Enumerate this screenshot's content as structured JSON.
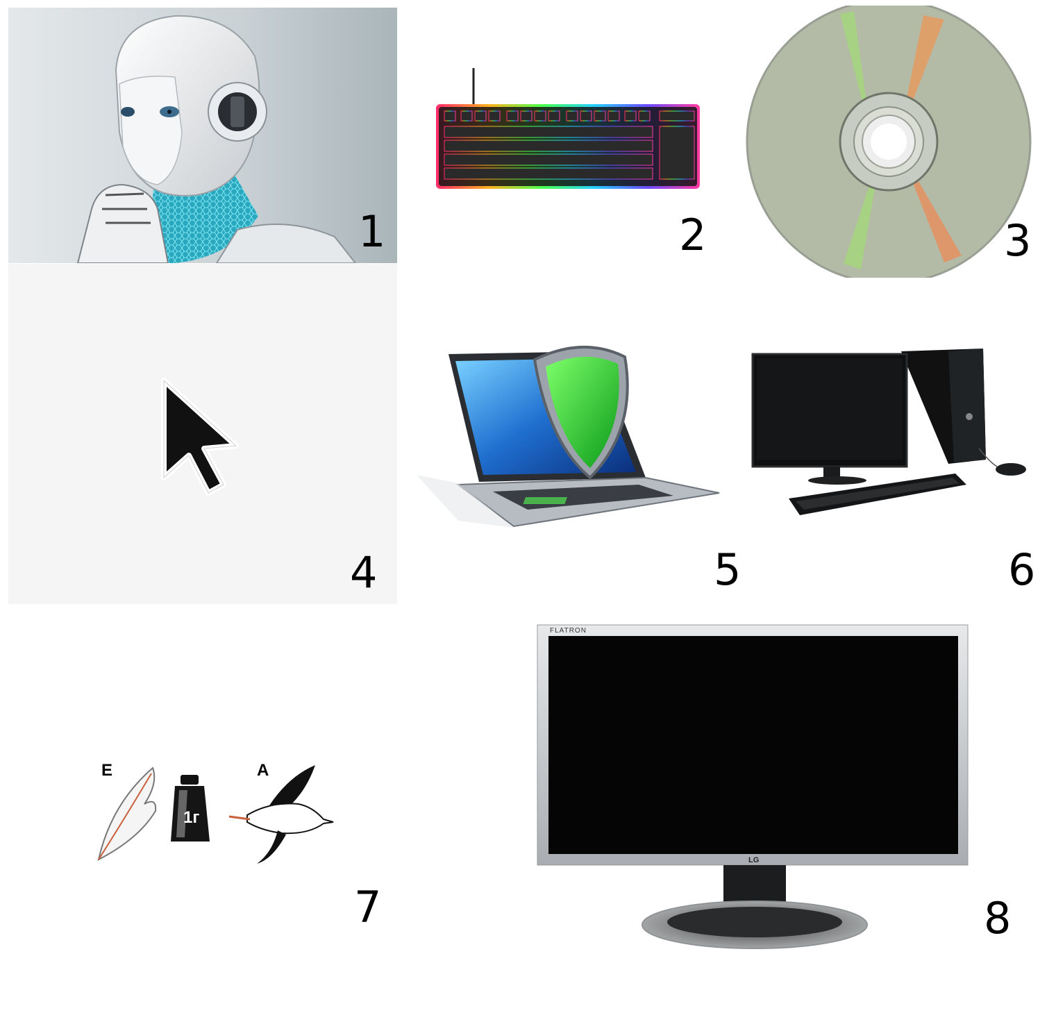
{
  "items": [
    {
      "number": "1",
      "icon": "robot-head-icon"
    },
    {
      "number": "2",
      "icon": "rgb-keyboard-icon"
    },
    {
      "number": "3",
      "icon": "optical-disc-icon"
    },
    {
      "number": "4",
      "icon": "mouse-cursor-icon"
    },
    {
      "number": "5",
      "icon": "laptop-shield-icon"
    },
    {
      "number": "6",
      "icon": "desktop-computer-icon"
    },
    {
      "number": "7",
      "icon": "rebus-feather-weight-stork-icon"
    },
    {
      "number": "8",
      "icon": "lcd-monitor-icon"
    }
  ],
  "rebus": {
    "letter_1": "E",
    "weight_label": "1г",
    "letter_2": "A"
  },
  "monitor": {
    "brand_top": "FLATRON",
    "brand_bottom": "LG"
  },
  "colors": {
    "shield_green": "#22c02a",
    "robot_glow": "#35c6d8",
    "screen_blue": "#1f6fd0"
  }
}
